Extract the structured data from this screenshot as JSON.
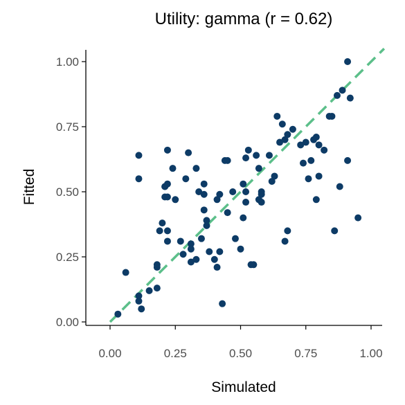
{
  "chart_data": {
    "type": "scatter",
    "title": "Utility: gamma (r = 0.62)",
    "xlabel": "Simulated",
    "ylabel": "Fitted",
    "xlim": [
      0,
      1
    ],
    "ylim": [
      0,
      1
    ],
    "x_ticks": [
      "0.00",
      "0.25",
      "0.50",
      "0.75",
      "1.00"
    ],
    "y_ticks": [
      "0.00",
      "0.25",
      "0.50",
      "0.75",
      "1.00"
    ],
    "grid": false,
    "legend": "none",
    "point_color": "#0d3b66",
    "reference_line": {
      "style": "dashed",
      "color": "#5cbf8a",
      "from": [
        0,
        0
      ],
      "to": [
        1.05,
        1.05
      ]
    },
    "points": [
      [
        0.03,
        0.03
      ],
      [
        0.06,
        0.19
      ],
      [
        0.11,
        0.1
      ],
      [
        0.11,
        0.08
      ],
      [
        0.12,
        0.05
      ],
      [
        0.15,
        0.12
      ],
      [
        0.18,
        0.13
      ],
      [
        0.18,
        0.21
      ],
      [
        0.18,
        0.22
      ],
      [
        0.19,
        0.35
      ],
      [
        0.2,
        0.38
      ],
      [
        0.21,
        0.48
      ],
      [
        0.21,
        0.52
      ],
      [
        0.22,
        0.48
      ],
      [
        0.22,
        0.35
      ],
      [
        0.22,
        0.31
      ],
      [
        0.21,
        0.52
      ],
      [
        0.22,
        0.53
      ],
      [
        0.11,
        0.64
      ],
      [
        0.11,
        0.55
      ],
      [
        0.22,
        0.66
      ],
      [
        0.24,
        0.59
      ],
      [
        0.25,
        0.47
      ],
      [
        0.27,
        0.31
      ],
      [
        0.28,
        0.26
      ],
      [
        0.29,
        0.55
      ],
      [
        0.3,
        0.65
      ],
      [
        0.31,
        0.3
      ],
      [
        0.31,
        0.28
      ],
      [
        0.31,
        0.23
      ],
      [
        0.33,
        0.59
      ],
      [
        0.33,
        0.24
      ],
      [
        0.34,
        0.5
      ],
      [
        0.35,
        0.32
      ],
      [
        0.36,
        0.43
      ],
      [
        0.36,
        0.53
      ],
      [
        0.36,
        0.49
      ],
      [
        0.37,
        0.37
      ],
      [
        0.37,
        0.39
      ],
      [
        0.38,
        0.27
      ],
      [
        0.4,
        0.24
      ],
      [
        0.41,
        0.21
      ],
      [
        0.41,
        0.47
      ],
      [
        0.42,
        0.49
      ],
      [
        0.42,
        0.27
      ],
      [
        0.43,
        0.07
      ],
      [
        0.44,
        0.62
      ],
      [
        0.45,
        0.62
      ],
      [
        0.45,
        0.42
      ],
      [
        0.47,
        0.5
      ],
      [
        0.48,
        0.32
      ],
      [
        0.5,
        0.28
      ],
      [
        0.51,
        0.53
      ],
      [
        0.51,
        0.4
      ],
      [
        0.52,
        0.46
      ],
      [
        0.52,
        0.5
      ],
      [
        0.52,
        0.63
      ],
      [
        0.53,
        0.66
      ],
      [
        0.54,
        0.22
      ],
      [
        0.55,
        0.22
      ],
      [
        0.56,
        0.64
      ],
      [
        0.57,
        0.59
      ],
      [
        0.57,
        0.47
      ],
      [
        0.58,
        0.49
      ],
      [
        0.58,
        0.46
      ],
      [
        0.58,
        0.5
      ],
      [
        0.61,
        0.64
      ],
      [
        0.62,
        0.54
      ],
      [
        0.63,
        0.56
      ],
      [
        0.64,
        0.79
      ],
      [
        0.65,
        0.69
      ],
      [
        0.66,
        0.76
      ],
      [
        0.67,
        0.31
      ],
      [
        0.67,
        0.7
      ],
      [
        0.68,
        0.35
      ],
      [
        0.68,
        0.72
      ],
      [
        0.7,
        0.74
      ],
      [
        0.73,
        0.68
      ],
      [
        0.74,
        0.61
      ],
      [
        0.75,
        0.69
      ],
      [
        0.76,
        0.55
      ],
      [
        0.77,
        0.62
      ],
      [
        0.78,
        0.7
      ],
      [
        0.79,
        0.47
      ],
      [
        0.79,
        0.71
      ],
      [
        0.8,
        0.56
      ],
      [
        0.8,
        0.68
      ],
      [
        0.82,
        0.66
      ],
      [
        0.84,
        0.79
      ],
      [
        0.85,
        0.79
      ],
      [
        0.86,
        0.35
      ],
      [
        0.87,
        0.87
      ],
      [
        0.88,
        0.52
      ],
      [
        0.89,
        0.89
      ],
      [
        0.91,
        1.0
      ],
      [
        0.91,
        0.62
      ],
      [
        0.92,
        0.86
      ],
      [
        0.95,
        0.4
      ]
    ]
  }
}
